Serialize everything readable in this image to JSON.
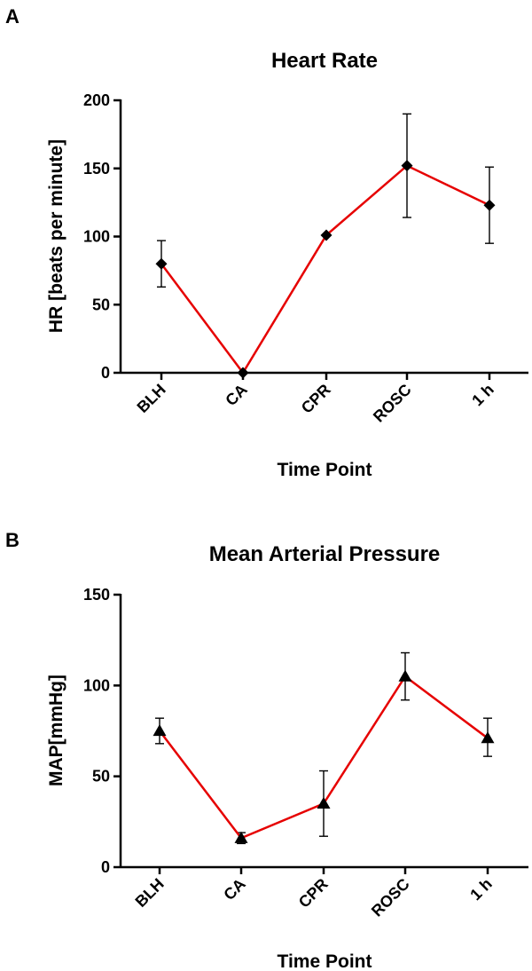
{
  "chart_data": [
    {
      "panel": "A",
      "type": "line",
      "title": "Heart Rate",
      "xlabel": "Time Point",
      "ylabel": "HR [beats per minute]",
      "categories": [
        "BLH",
        "CA",
        "CPR",
        "ROSC",
        "1 h"
      ],
      "ylim": [
        0,
        200
      ],
      "yticks": [
        0,
        50,
        100,
        150,
        200
      ],
      "marker": "diamond",
      "line_color": "#e60000",
      "marker_color": "#000000",
      "series": [
        {
          "name": "HR",
          "values": [
            80,
            0,
            101,
            152,
            123
          ],
          "err_low": [
            63,
            0,
            101,
            114,
            95
          ],
          "err_high": [
            97,
            0,
            101,
            190,
            151
          ]
        }
      ]
    },
    {
      "panel": "B",
      "type": "line",
      "title": "Mean Arterial Pressure",
      "xlabel": "Time Point",
      "ylabel": "MAP[mmHg]",
      "categories": [
        "BLH",
        "CA",
        "CPR",
        "ROSC",
        "1 h"
      ],
      "ylim": [
        0,
        150
      ],
      "yticks": [
        0,
        50,
        100,
        150
      ],
      "marker": "triangle",
      "line_color": "#e60000",
      "marker_color": "#000000",
      "series": [
        {
          "name": "MAP",
          "values": [
            75,
            16,
            35,
            105,
            71
          ],
          "err_low": [
            68,
            13,
            17,
            92,
            61
          ],
          "err_high": [
            82,
            19,
            53,
            118,
            82
          ]
        }
      ]
    }
  ]
}
